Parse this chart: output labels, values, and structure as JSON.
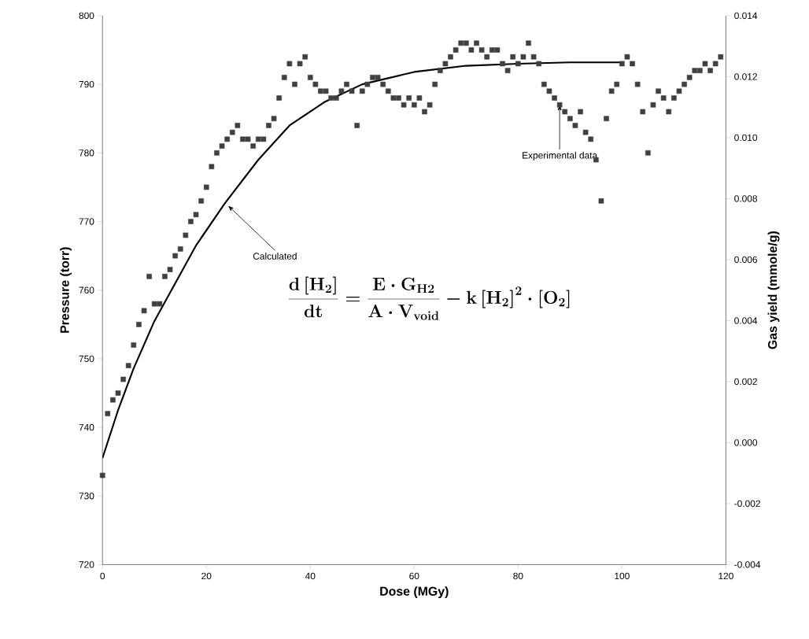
{
  "chart_data": {
    "type": "scatter",
    "xlabel": "Dose (MGy)",
    "ylabel": "Pressure (torr)",
    "y2label": "Gas yield (mmole/g)",
    "xlim": [
      0,
      120
    ],
    "xticks": [
      0,
      20,
      40,
      60,
      80,
      100,
      120
    ],
    "ylim": [
      720,
      800
    ],
    "yticks": [
      720,
      730,
      740,
      750,
      760,
      770,
      780,
      790,
      800
    ],
    "y2lim": [
      -0.004,
      0.014
    ],
    "y2ticks": [
      {
        "value": -0.004,
        "label": "-0.004"
      },
      {
        "value": -0.002,
        "label": "-0.002"
      },
      {
        "value": 0,
        "label": "0.000"
      },
      {
        "value": 0.002,
        "label": "0.002"
      },
      {
        "value": 0.004,
        "label": "0.004"
      },
      {
        "value": 0.006,
        "label": "0.006"
      },
      {
        "value": 0.008,
        "label": "0.008"
      },
      {
        "value": 0.01,
        "label": "0.010"
      },
      {
        "value": 0.012,
        "label": "0.012"
      },
      {
        "value": 0.014,
        "label": "0.014"
      }
    ],
    "series": [
      {
        "marker": "square",
        "color": "#404040",
        "x": [
          0,
          1,
          2,
          3,
          4,
          5,
          6,
          7,
          8,
          9,
          10,
          11,
          12,
          13,
          14,
          15,
          16,
          17,
          18,
          19,
          20,
          21,
          22,
          23,
          24,
          25,
          26,
          27,
          28,
          29,
          30,
          31,
          32,
          33,
          34,
          35,
          36,
          37,
          38,
          39,
          40,
          41,
          42,
          43,
          44,
          45,
          46,
          47,
          48,
          49,
          50,
          51,
          52,
          53,
          54,
          55,
          56,
          57,
          58,
          59,
          60,
          61,
          62,
          63,
          64,
          65,
          66,
          67,
          68,
          69,
          70,
          71,
          72,
          73,
          74,
          75,
          76,
          77,
          78,
          79,
          80,
          81,
          82,
          83,
          84,
          85,
          86,
          87,
          88,
          89,
          90,
          91,
          92,
          93,
          94,
          95,
          96,
          97,
          98,
          99,
          100,
          101,
          102,
          103,
          104,
          105,
          106,
          107,
          108,
          109,
          110,
          111,
          112,
          113,
          114,
          115,
          116,
          117,
          118,
          119
        ],
        "values": [
          733,
          742,
          744,
          745,
          747,
          749,
          752,
          755,
          757,
          762,
          758,
          758,
          762,
          763,
          765,
          766,
          768,
          770,
          771,
          773,
          775,
          778,
          780,
          781,
          782,
          783,
          784,
          782,
          782,
          781,
          782,
          782,
          784,
          785,
          788,
          791,
          793,
          790,
          793,
          794,
          791,
          790,
          789,
          789,
          788,
          788,
          789,
          790,
          789,
          784,
          789,
          790,
          791,
          791,
          790,
          789,
          788,
          788,
          787,
          788,
          787,
          788,
          786,
          787,
          790,
          792,
          793,
          794,
          795,
          796,
          796,
          795,
          796,
          795,
          794,
          795,
          795,
          793,
          792,
          794,
          793,
          794,
          796,
          794,
          793,
          790,
          789,
          788,
          787,
          786,
          785,
          784,
          786,
          783,
          782,
          779,
          773,
          785,
          789,
          790,
          793,
          794,
          793,
          790,
          786,
          780,
          787,
          789,
          788,
          786,
          788,
          789,
          790,
          791,
          792,
          792,
          793,
          792,
          793,
          794
        ]
      },
      {
        "type": "line",
        "color": "#000000",
        "line_style": "solid",
        "x": [
          0,
          3,
          6,
          10,
          14,
          18,
          23.5,
          30,
          36,
          42.7,
          50,
          60,
          70,
          80,
          90,
          100
        ],
        "values": [
          735.5,
          742.5,
          748.6,
          755.5,
          761,
          766.5,
          772.6,
          779,
          784,
          787.4,
          790,
          791.8,
          792.7,
          793,
          793.2,
          793.2
        ]
      }
    ],
    "annotations": [
      {
        "text": "Calculated",
        "x": 24.2,
        "y": 772.3
      },
      {
        "text": "Experimental data",
        "x": 88,
        "y": 787
      },
      "\\frac{\\mathbf{d}\\left[\\mathbf{H}_{\\mathbf{2}}\\right]}{\\mathbf{dt}}=\\frac{\\mathbf{E}\\cdot\\mathbf{G}_{\\mathbf{H2}}}{\\mathbf{A}\\cdot\\mathbf{V}_{\\mathbf{void}}}-\\mathbf{k}\\left[\\mathbf{H}_{\\mathbf{2}}\\right]^{\\mathbf{2}}\\cdot\\left[\\mathbf{O}_{\\mathbf{2}}\\right]"
    ]
  }
}
